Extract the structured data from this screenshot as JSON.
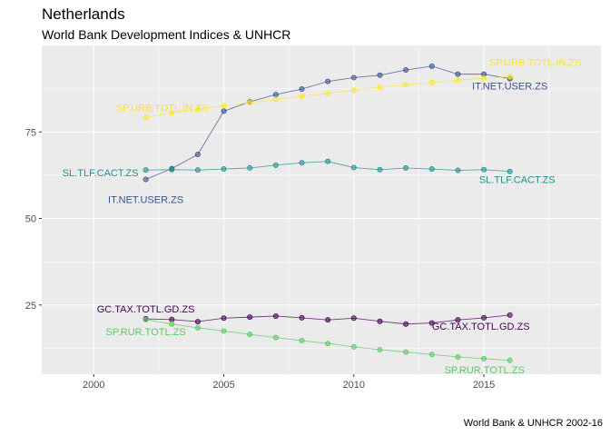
{
  "title": "Netherlands",
  "subtitle": "World Bank Development Indices & UNHCR",
  "caption": "World Bank & UNHCR 2002-16",
  "chart_data": {
    "type": "line",
    "xlim": [
      1998,
      2019.5
    ],
    "ylim": [
      5,
      100
    ],
    "x_ticks": [
      2000,
      2005,
      2010,
      2015
    ],
    "y_ticks": [
      25,
      50,
      75
    ],
    "grid": true,
    "legend": "none",
    "x": [
      2002,
      2003,
      2004,
      2005,
      2006,
      2007,
      2008,
      2009,
      2010,
      2011,
      2012,
      2013,
      2014,
      2015,
      2016
    ],
    "series": [
      {
        "name": "IT.NET.USER.ZS",
        "color": "#3B528B",
        "values": [
          61.3,
          64.4,
          68.5,
          81.0,
          83.7,
          85.8,
          87.4,
          89.6,
          90.7,
          91.4,
          92.9,
          94.0,
          91.7,
          91.7,
          90.4
        ],
        "start_label": "IT.NET.USER.ZS",
        "end_label": "IT.NET.USER.ZS"
      },
      {
        "name": "SP.URB.TOTL.IN.ZS",
        "color": "#FDE725",
        "values": [
          79.2,
          80.5,
          81.6,
          82.5,
          83.5,
          84.4,
          85.3,
          86.1,
          87.1,
          87.9,
          88.6,
          89.3,
          90.0,
          90.5,
          91.0
        ],
        "start_label": "SP.URB.TOTL.IN.ZS",
        "end_label": "SP.URB.TOTL.IN.ZS"
      },
      {
        "name": "SL.TLF.CACT.ZS",
        "color": "#21908C",
        "values": [
          64.0,
          64.1,
          64.0,
          64.3,
          64.6,
          65.4,
          66.1,
          66.5,
          64.7,
          64.1,
          64.6,
          64.3,
          63.9,
          64.1,
          63.6
        ],
        "start_label": "SL.TLF.CACT.ZS",
        "end_label": "SL.TLF.CACT.ZS"
      },
      {
        "name": "GC.TAX.TOTL.GD.ZS",
        "color": "#440154",
        "values": [
          21.0,
          20.8,
          20.2,
          21.2,
          21.5,
          21.8,
          21.3,
          20.7,
          21.2,
          20.3,
          19.5,
          19.8,
          20.7,
          21.3,
          22.1
        ],
        "start_label": "GC.TAX.TOTL.GD.ZS",
        "end_label": "GC.TAX.TOTL.GD.ZS"
      },
      {
        "name": "SP.RUR.TOTL.ZS",
        "color": "#5DC863",
        "values": [
          20.8,
          19.5,
          18.4,
          17.5,
          16.5,
          15.6,
          14.7,
          13.9,
          12.9,
          12.1,
          11.4,
          10.7,
          10.0,
          9.5,
          9.0
        ],
        "start_label": "SP.RUR.TOTL.ZS",
        "end_label": "SP.RUR.TOTL.ZS"
      }
    ]
  }
}
